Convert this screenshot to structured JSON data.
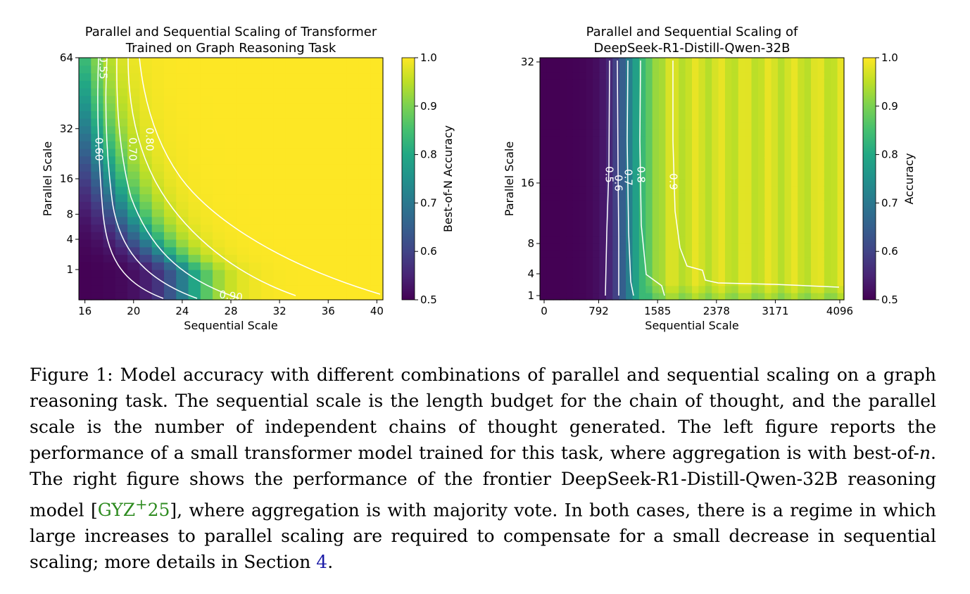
{
  "chart_data": [
    {
      "type": "heatmap",
      "title": "Parallel and Sequential Scaling of Transformer\nTrained on Graph Reasoning Task",
      "xlabel": "Sequential Scale",
      "ylabel": "Parallel Scale",
      "colorbar_label": "Best-of-N Accuracy",
      "x_ticks": [
        "16",
        "20",
        "24",
        "28",
        "32",
        "36",
        "40"
      ],
      "y_ticks": [
        "1",
        "4",
        "8",
        "16",
        "32",
        "64"
      ],
      "x_range": [
        15.5,
        40.5
      ],
      "y_range": [
        0,
        64
      ],
      "y_scale": "sqrt",
      "colorbar_range": [
        0.5,
        1.0
      ],
      "colorbar_ticks": [
        "0.5",
        "0.6",
        "0.7",
        "0.8",
        "0.9",
        "1.0"
      ],
      "contour_levels": [
        "0.55",
        "0.60",
        "0.70",
        "0.80",
        "0.90"
      ]
    },
    {
      "type": "heatmap",
      "title": "Parallel and Sequential Scaling of\nDeepSeek-R1-Distill-Qwen-32B",
      "xlabel": "Sequential Scale",
      "ylabel": "Parallel Scale",
      "colorbar_label": "Accuracy",
      "x_ticks": [
        "0",
        "792",
        "1585",
        "2378",
        "3171",
        "4096"
      ],
      "y_ticks": [
        "1",
        "4",
        "8",
        "16",
        "32"
      ],
      "x_range": [
        0,
        4096
      ],
      "y_range": [
        1,
        32
      ],
      "colorbar_range": [
        0.5,
        1.0
      ],
      "colorbar_ticks": [
        "0.5",
        "0.6",
        "0.7",
        "0.8",
        "0.9",
        "1.0"
      ],
      "contour_levels": [
        "0.5",
        "0.6",
        "0.7",
        "0.8",
        "0.9"
      ]
    }
  ],
  "caption": {
    "part1": "Figure 1:  Model accuracy with different combinations of parallel and sequential scaling on a graph reasoning task. The sequential scale is the length budget for the chain of thought, and the parallel scale is the number of independent chains of thought generated. The left figure reports the performance of a small transformer model trained for this task, where aggregation is with best-of-",
    "math_n": "n",
    "part2": ". The right figure shows the performance of the frontier DeepSeek-R1-Distill-Qwen-32B reasoning model [",
    "cite_main": "GYZ",
    "cite_sup": "+",
    "cite_year": "25",
    "part3": "], where aggregation is with majority vote. In both cases, there is a regime in which large increases to parallel scaling are required to compensate for a small decrease in sequential scaling; more details in Section ",
    "section_ref": "4",
    "part4": "."
  }
}
